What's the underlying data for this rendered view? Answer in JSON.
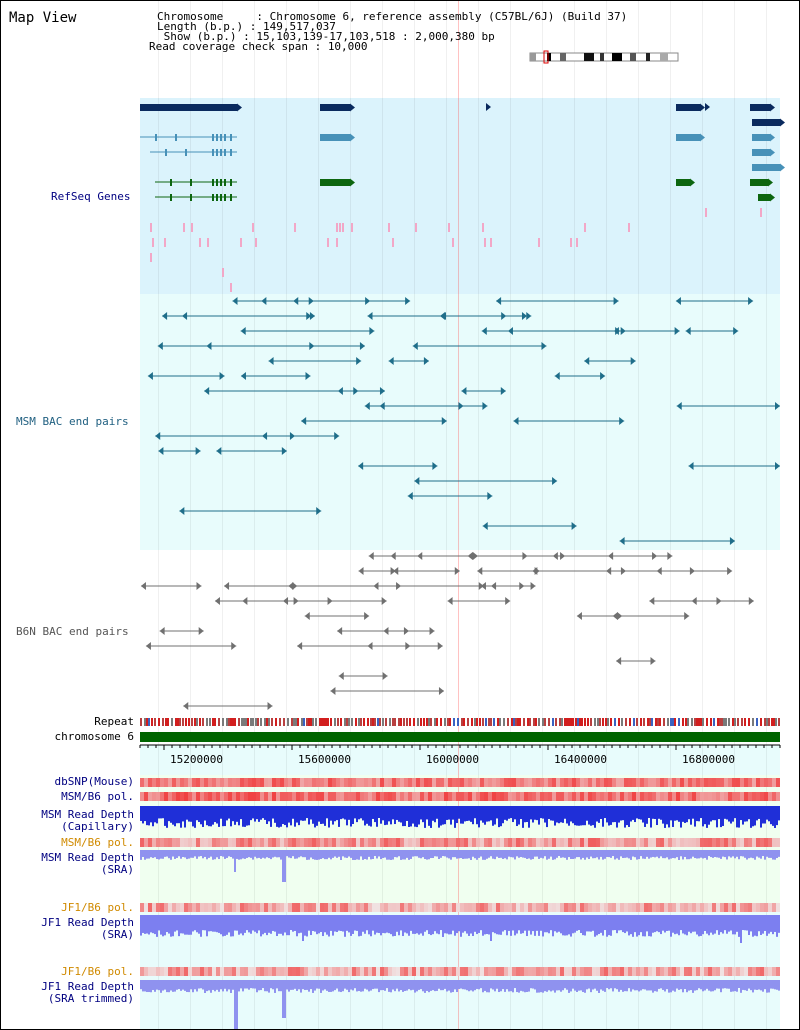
{
  "page": {
    "title": "Map View"
  },
  "info": {
    "chromosome_label": "Chromosome     : ",
    "chromosome_value": "Chromosome 6, reference assembly (C57BL/6J) (Build 37)",
    "length_label": "Length (b.p.) : ",
    "length_value": "149,517,037",
    "show_label": " Show (b.p.) : ",
    "show_value": "15,103,139-17,103,518 : 2,000,380 bp",
    "coverage_label": "Read coverage check span : ",
    "coverage_value": "10,000"
  },
  "tracks": {
    "refseq": "RefSeq Genes",
    "msm_bac": "MSM BAC end pairs",
    "b6n_bac": "B6N BAC end pairs",
    "repeat": "Repeat",
    "chromosome": "chromosome 6",
    "dbsnp": "dbSNP(Mouse)",
    "msm_b6_pol_1": "MSM/B6 pol.",
    "msm_depth_cap_1": "MSM Read Depth",
    "msm_depth_cap_2": "(Capillary)",
    "msm_b6_pol_2": "MSM/B6 pol.",
    "msm_depth_sra_1": "MSM Read Depth",
    "msm_depth_sra_2": "(SRA)",
    "jf1_b6_pol_1": "JF1/B6 pol.",
    "jf1_depth_sra_1": "JF1 Read Depth",
    "jf1_depth_sra_2": "(SRA)",
    "jf1_b6_pol_2": "JF1/B6 pol.",
    "jf1_depth_trim_1": "JF1 Read Depth",
    "jf1_depth_trim_2": "(SRA trimmed)"
  },
  "axis": {
    "ticks": [
      "15200000",
      "15600000",
      "16000000",
      "16400000",
      "16800000"
    ]
  },
  "colors": {
    "refseq_bg": "#dbf3fc",
    "msm_bg": "#e8fcfc",
    "gene_navy": "#0a2a5e",
    "gene_blue": "#4791b8",
    "gene_green": "#0d6610",
    "bac_msm": "#1f6e8a",
    "bac_b6n": "#707070",
    "label_blue": "#000080",
    "label_orange": "#d08a00",
    "chromosome_bar": "#006400"
  }
}
